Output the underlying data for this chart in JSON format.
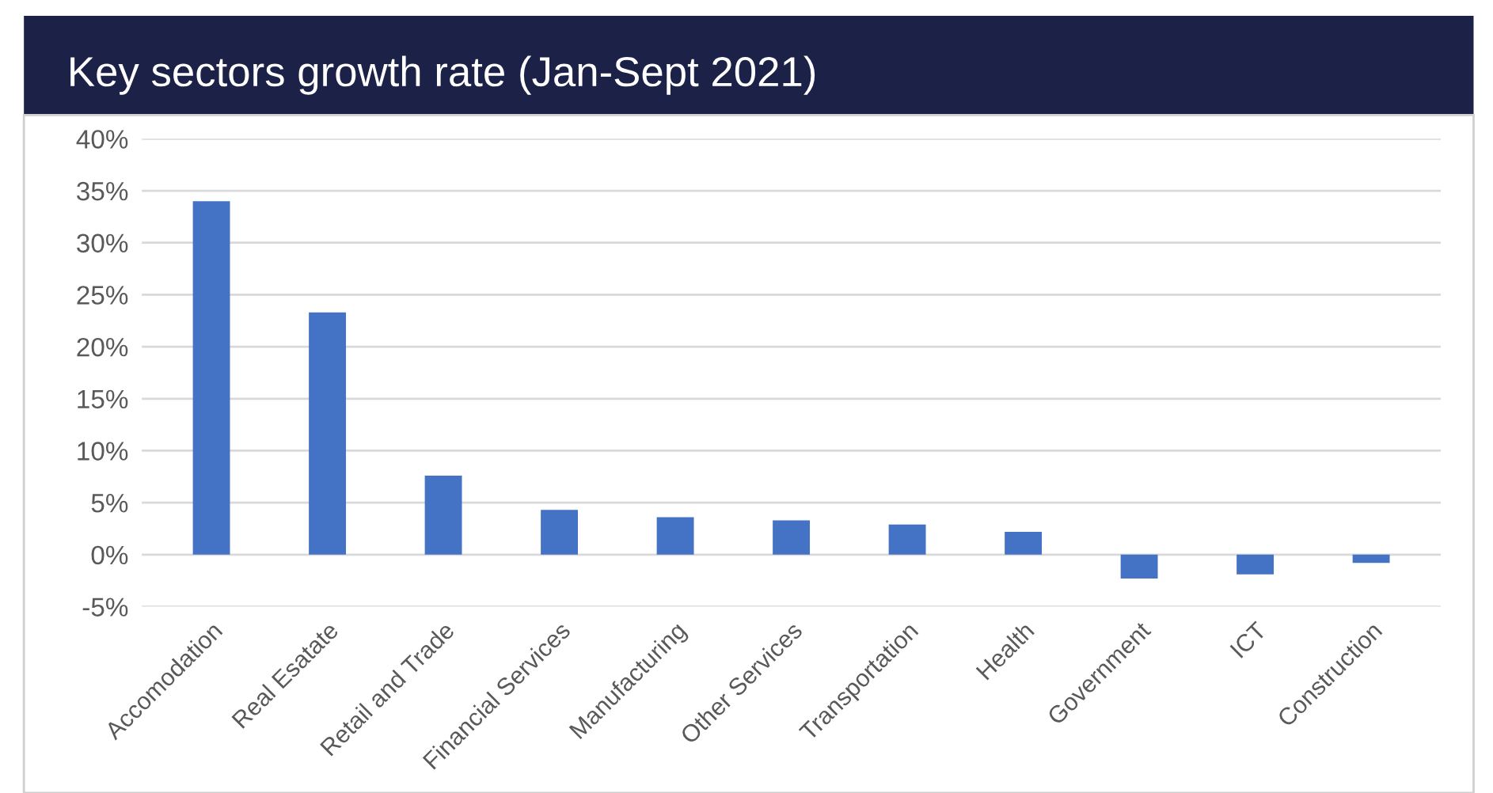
{
  "chart_data": {
    "type": "bar",
    "title": "Key sectors growth rate (Jan-Sept 2021)",
    "categories": [
      "Accomodation",
      "Real Esatate",
      "Retail and Trade",
      "Financial Services",
      "Manufacturing",
      "Other Services",
      "Transportation",
      "Health",
      "Government",
      "ICT",
      "Construction"
    ],
    "values": [
      34.0,
      23.3,
      7.6,
      4.3,
      3.6,
      3.3,
      2.9,
      2.2,
      -2.3,
      -1.9,
      -0.8
    ],
    "color": "#4472c4",
    "ylim": [
      -5,
      40
    ],
    "yticks": [
      {
        "value": -5,
        "label": "-5%"
      },
      {
        "value": 0,
        "label": "0%"
      },
      {
        "value": 5,
        "label": "5%"
      },
      {
        "value": 10,
        "label": "10%"
      },
      {
        "value": 15,
        "label": "15%"
      },
      {
        "value": 20,
        "label": "20%"
      },
      {
        "value": 25,
        "label": "25%"
      },
      {
        "value": 30,
        "label": "30%"
      },
      {
        "value": 35,
        "label": "35%"
      },
      {
        "value": 40,
        "label": "40%"
      }
    ],
    "grid": "y"
  }
}
